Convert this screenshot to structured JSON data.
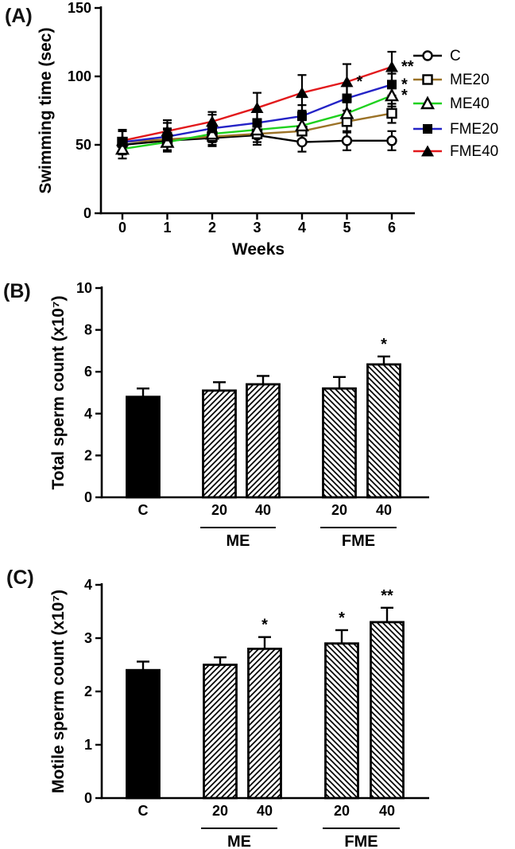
{
  "panels": {
    "a": {
      "label": "(A)"
    },
    "b": {
      "label": "(B)"
    },
    "c": {
      "label": "(C)"
    }
  },
  "colors": {
    "control_line": "#000000",
    "me20_line": "#9b7227",
    "me40_line": "#1fd11f",
    "fme20_line": "#2423c6",
    "fme40_line": "#e2191c",
    "bar_solid": "#000000",
    "axis": "#000000"
  },
  "chart_data": [
    {
      "type": "line",
      "panel": "A",
      "ylabel": "Swimming time (sec)",
      "xlabel": "Weeks",
      "x": [
        0,
        1,
        2,
        3,
        4,
        5,
        6
      ],
      "ylim": [
        0,
        150
      ],
      "yticks": [
        0,
        50,
        100,
        150
      ],
      "legend_position": "right",
      "series": [
        {
          "name": "C",
          "color": "#000000",
          "marker": "circle-open",
          "values": [
            50,
            53,
            55,
            57,
            52,
            53,
            53
          ],
          "errors": [
            10,
            8,
            6,
            7,
            7,
            7,
            7
          ]
        },
        {
          "name": "ME20",
          "color": "#9b7227",
          "marker": "square-open",
          "values": [
            52,
            54,
            56,
            58,
            60,
            67,
            73
          ],
          "errors": [
            8,
            8,
            6,
            6,
            8,
            8,
            7
          ]
        },
        {
          "name": "ME40",
          "color": "#1fd11f",
          "marker": "triangle-open",
          "values": [
            47,
            52,
            58,
            61,
            64,
            73,
            86
          ],
          "errors": [
            4,
            6,
            6,
            6,
            6,
            8,
            8
          ]
        },
        {
          "name": "FME20",
          "color": "#2423c6",
          "marker": "square-filled",
          "values": [
            52,
            56,
            62,
            66,
            71,
            84,
            94
          ],
          "errors": [
            8,
            10,
            10,
            8,
            8,
            9,
            8
          ]
        },
        {
          "name": "FME40",
          "color": "#e2191c",
          "marker": "triangle-filled",
          "values": [
            53,
            60,
            67,
            77,
            88,
            96,
            107
          ],
          "errors": [
            8,
            8,
            7,
            11,
            13,
            13,
            11
          ]
        }
      ],
      "annotations": [
        {
          "series": "FME40",
          "x": 5,
          "text": "*"
        },
        {
          "series": "FME40",
          "x": 6,
          "text": "**"
        },
        {
          "series": "FME20",
          "x": 6,
          "text": "*"
        },
        {
          "series": "ME40",
          "x": 6,
          "text": "*"
        }
      ]
    },
    {
      "type": "bar",
      "panel": "B",
      "ylabel": "Total sperm count (x10⁷)",
      "ylim": [
        0,
        10
      ],
      "yticks": [
        0,
        2,
        4,
        6,
        8,
        10
      ],
      "bars": [
        {
          "label": "C",
          "value": 4.8,
          "error": 0.4,
          "style": "solid",
          "sig": ""
        },
        {
          "label": "20",
          "value": 5.1,
          "error": 0.4,
          "style": "hatch-fwd",
          "sig": ""
        },
        {
          "label": "40",
          "value": 5.4,
          "error": 0.4,
          "style": "hatch-fwd",
          "sig": ""
        },
        {
          "label": "20",
          "value": 5.2,
          "error": 0.55,
          "style": "hatch-bwd",
          "sig": ""
        },
        {
          "label": "40",
          "value": 6.35,
          "error": 0.38,
          "style": "hatch-bwd",
          "sig": "*"
        }
      ],
      "groups": [
        {
          "name": "ME",
          "bars": [
            1,
            2
          ]
        },
        {
          "name": "FME",
          "bars": [
            3,
            4
          ]
        }
      ]
    },
    {
      "type": "bar",
      "panel": "C",
      "ylabel": "Motile sperm count (x10⁷)",
      "ylim": [
        0,
        4
      ],
      "yticks": [
        0,
        1,
        2,
        3,
        4
      ],
      "bars": [
        {
          "label": "C",
          "value": 2.4,
          "error": 0.16,
          "style": "solid",
          "sig": ""
        },
        {
          "label": "20",
          "value": 2.5,
          "error": 0.14,
          "style": "hatch-fwd",
          "sig": ""
        },
        {
          "label": "40",
          "value": 2.8,
          "error": 0.22,
          "style": "hatch-fwd",
          "sig": "*"
        },
        {
          "label": "20",
          "value": 2.9,
          "error": 0.25,
          "style": "hatch-bwd",
          "sig": "*"
        },
        {
          "label": "40",
          "value": 3.3,
          "error": 0.27,
          "style": "hatch-bwd",
          "sig": "**"
        }
      ],
      "groups": [
        {
          "name": "ME",
          "bars": [
            1,
            2
          ]
        },
        {
          "name": "FME",
          "bars": [
            3,
            4
          ]
        }
      ]
    }
  ]
}
